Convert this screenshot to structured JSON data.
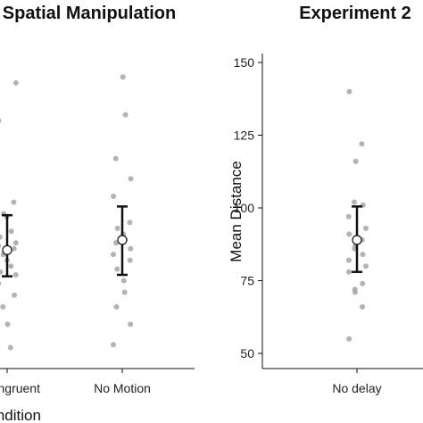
{
  "chart_data": [
    {
      "type": "scatter",
      "title": "Spatial Manipulation",
      "xlabel": "Condition",
      "ylabel": "",
      "ylim": [
        45,
        155
      ],
      "categories": [
        "Incongruent",
        "No Motion"
      ],
      "points": [
        [
          143,
          130,
          102,
          98,
          97,
          92,
          90,
          88,
          87,
          86,
          84,
          82,
          80,
          78,
          77,
          74,
          70,
          66,
          60,
          52
        ],
        [
          145,
          132,
          117,
          110,
          104,
          95,
          93,
          91,
          89,
          88,
          86,
          84,
          82,
          79,
          75,
          71,
          66,
          60,
          53
        ]
      ],
      "means": [
        85.5,
        89
      ],
      "error_low": [
        76.5,
        77
      ],
      "error_high": [
        97.5,
        100.5
      ],
      "grid": false,
      "legend": "none"
    },
    {
      "type": "scatter",
      "title": "Experiment 2",
      "xlabel": "",
      "ylabel": "Mean Distance",
      "ylim": [
        45,
        152
      ],
      "yticks": [
        50,
        75,
        100,
        125,
        150
      ],
      "categories": [
        "No delay"
      ],
      "points": [
        [
          140,
          122,
          116,
          102,
          101,
          97,
          93,
          91,
          89,
          87,
          86,
          84,
          82,
          80,
          78,
          74,
          72,
          71,
          66,
          55
        ]
      ],
      "means": [
        89
      ],
      "error_low": [
        78
      ],
      "error_high": [
        100.5
      ],
      "grid": false,
      "legend": "none"
    }
  ]
}
